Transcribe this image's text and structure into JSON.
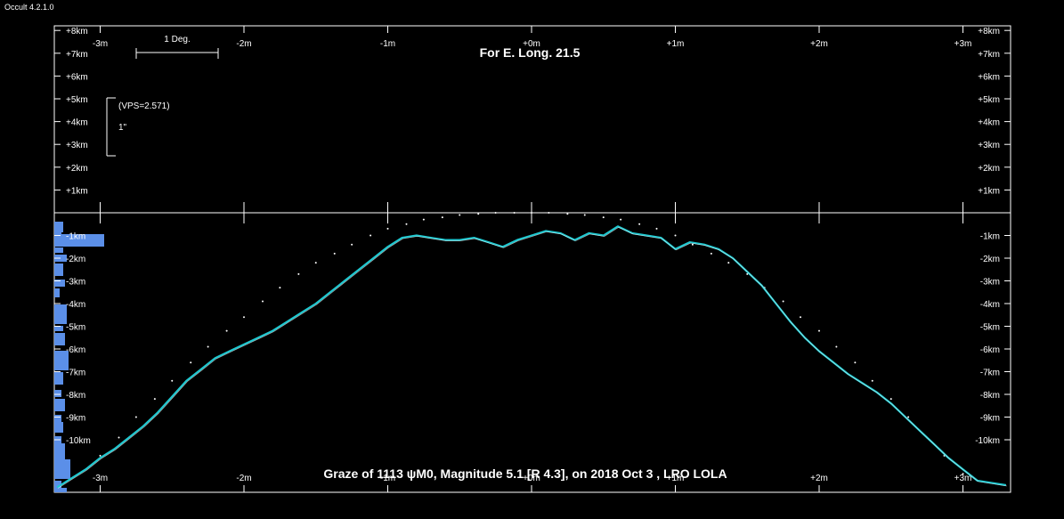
{
  "app": {
    "version": "Occult 4.2.1.0"
  },
  "header": {
    "title": "For E. Long. 21.5"
  },
  "footer": {
    "caption": "Graze of  1113 ψM0,  Magnitude 5.1 [R 4.3],  on 2018 Oct  3 ,  LRO LOLA"
  },
  "scale": {
    "degree_label": "1 Deg.",
    "vps_label": "(VPS=2.571)",
    "arcsec_label": "1\""
  },
  "chart_data": {
    "type": "line",
    "title": "For E. Long. 21.5",
    "x_ticks": [
      "-3m",
      "-2m",
      "-1m",
      "+0m",
      "+1m",
      "+2m",
      "+3m"
    ],
    "x_tick_values": [
      -3,
      -2,
      -1,
      0,
      1,
      2,
      3
    ],
    "upper_y_ticks": [
      "+8km",
      "+7km",
      "+6km",
      "+5km",
      "+4km",
      "+3km",
      "+2km",
      "+1km"
    ],
    "upper_y_values": [
      8,
      7,
      6,
      5,
      4,
      3,
      2,
      1
    ],
    "lower_y_ticks": [
      "-1km",
      "-2km",
      "-3km",
      "-4km",
      "-5km",
      "-6km",
      "-7km",
      "-8km",
      "-9km",
      "-10km"
    ],
    "lower_y_values": [
      -1,
      -2,
      -3,
      -4,
      -5,
      -6,
      -7,
      -8,
      -9,
      -10
    ],
    "ylim": [
      -12,
      8.2
    ],
    "xlim": [
      -3.3,
      3.3
    ],
    "series": [
      {
        "role": "limb profile",
        "color": "#1ec8d0",
        "x": [
          -3.3,
          -3.2,
          -3.1,
          -3.0,
          -2.9,
          -2.8,
          -2.7,
          -2.6,
          -2.5,
          -2.4,
          -2.3,
          -2.2,
          -2.1,
          -2.0,
          -1.9,
          -1.8,
          -1.7,
          -1.6,
          -1.5,
          -1.4,
          -1.3,
          -1.2,
          -1.1,
          -1.0,
          -0.9,
          -0.8,
          -0.7,
          -0.6,
          -0.5,
          -0.4,
          -0.3,
          -0.2,
          -0.1,
          0.0,
          0.1,
          0.2,
          0.3,
          0.4,
          0.5,
          0.6,
          0.7,
          0.8,
          0.9,
          1.0,
          1.1,
          1.2,
          1.3,
          1.4,
          1.5,
          1.6,
          1.7,
          1.8,
          1.9,
          2.0,
          2.1,
          2.2,
          2.3,
          2.4,
          2.5,
          2.6,
          2.7,
          2.8,
          2.9,
          3.0,
          3.1,
          3.3
        ],
        "y": [
          -12.1,
          -11.7,
          -11.3,
          -10.8,
          -10.4,
          -9.9,
          -9.4,
          -8.8,
          -8.1,
          -7.4,
          -6.9,
          -6.4,
          -6.1,
          -5.8,
          -5.5,
          -5.2,
          -4.8,
          -4.4,
          -4.0,
          -3.5,
          -3.0,
          -2.5,
          -2.0,
          -1.5,
          -1.1,
          -1.0,
          -1.1,
          -1.2,
          -1.2,
          -1.1,
          -1.3,
          -1.5,
          -1.2,
          -1.0,
          -0.8,
          -0.9,
          -1.2,
          -0.9,
          -1.0,
          -0.6,
          -0.9,
          -1.0,
          -1.1,
          -1.6,
          -1.3,
          -1.4,
          -1.6,
          -2.0,
          -2.6,
          -3.2,
          -4.0,
          -4.8,
          -5.5,
          -6.1,
          -6.6,
          -7.1,
          -7.5,
          -7.9,
          -8.4,
          -9.0,
          -9.6,
          -10.2,
          -10.8,
          -11.3,
          -11.8,
          -12.0
        ]
      },
      {
        "role": "dots",
        "color": "#ffffff",
        "x": [
          -3.0,
          -2.87,
          -2.75,
          -2.62,
          -2.5,
          -2.37,
          -2.25,
          -2.12,
          -2.0,
          -1.87,
          -1.75,
          -1.62,
          -1.5,
          -1.37,
          -1.25,
          -1.12,
          -1.0,
          -0.87,
          -0.75,
          -0.62,
          -0.5,
          -0.37,
          -0.25,
          -0.12,
          0.0,
          0.12,
          0.25,
          0.37,
          0.5,
          0.62,
          0.75,
          0.87,
          1.0,
          1.12,
          1.25,
          1.37,
          1.5,
          1.62,
          1.75,
          1.87,
          2.0,
          2.12,
          2.25,
          2.37,
          2.5,
          2.62,
          2.75,
          2.87,
          3.0
        ],
        "y": [
          -10.7,
          -9.9,
          -9.0,
          -8.2,
          -7.4,
          -6.6,
          -5.9,
          -5.2,
          -4.6,
          -3.9,
          -3.3,
          -2.7,
          -2.2,
          -1.8,
          -1.4,
          -1.0,
          -0.7,
          -0.5,
          -0.3,
          -0.2,
          -0.1,
          -0.05,
          0.0,
          0.0,
          0.0,
          0.0,
          -0.05,
          -0.1,
          -0.2,
          -0.3,
          -0.5,
          -0.7,
          -1.0,
          -1.4,
          -1.8,
          -2.2,
          -2.7,
          -3.3,
          -3.9,
          -4.6,
          -5.2,
          -5.9,
          -6.6,
          -7.4,
          -8.2,
          -9.0,
          -9.9,
          -10.7,
          -11.5
        ]
      }
    ],
    "histogram_color": "#5b8fe8"
  }
}
